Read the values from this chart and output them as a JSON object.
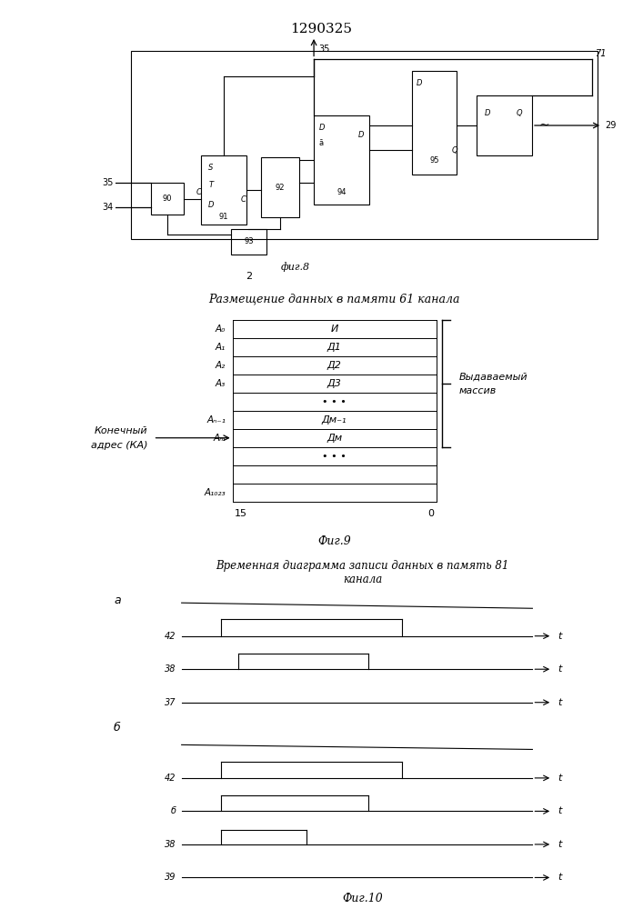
{
  "title": "1290325",
  "fig8_label": "фиг.8",
  "fig9_title": "Размещение данных в памяти 61 канала",
  "fig9_label": "Фиг.9",
  "fig10_title": "Временная диаграмма записи данных в память 81\nканала",
  "fig10_label": "Фиг.10",
  "bg_color": "#ffffff",
  "line_color": "#000000"
}
